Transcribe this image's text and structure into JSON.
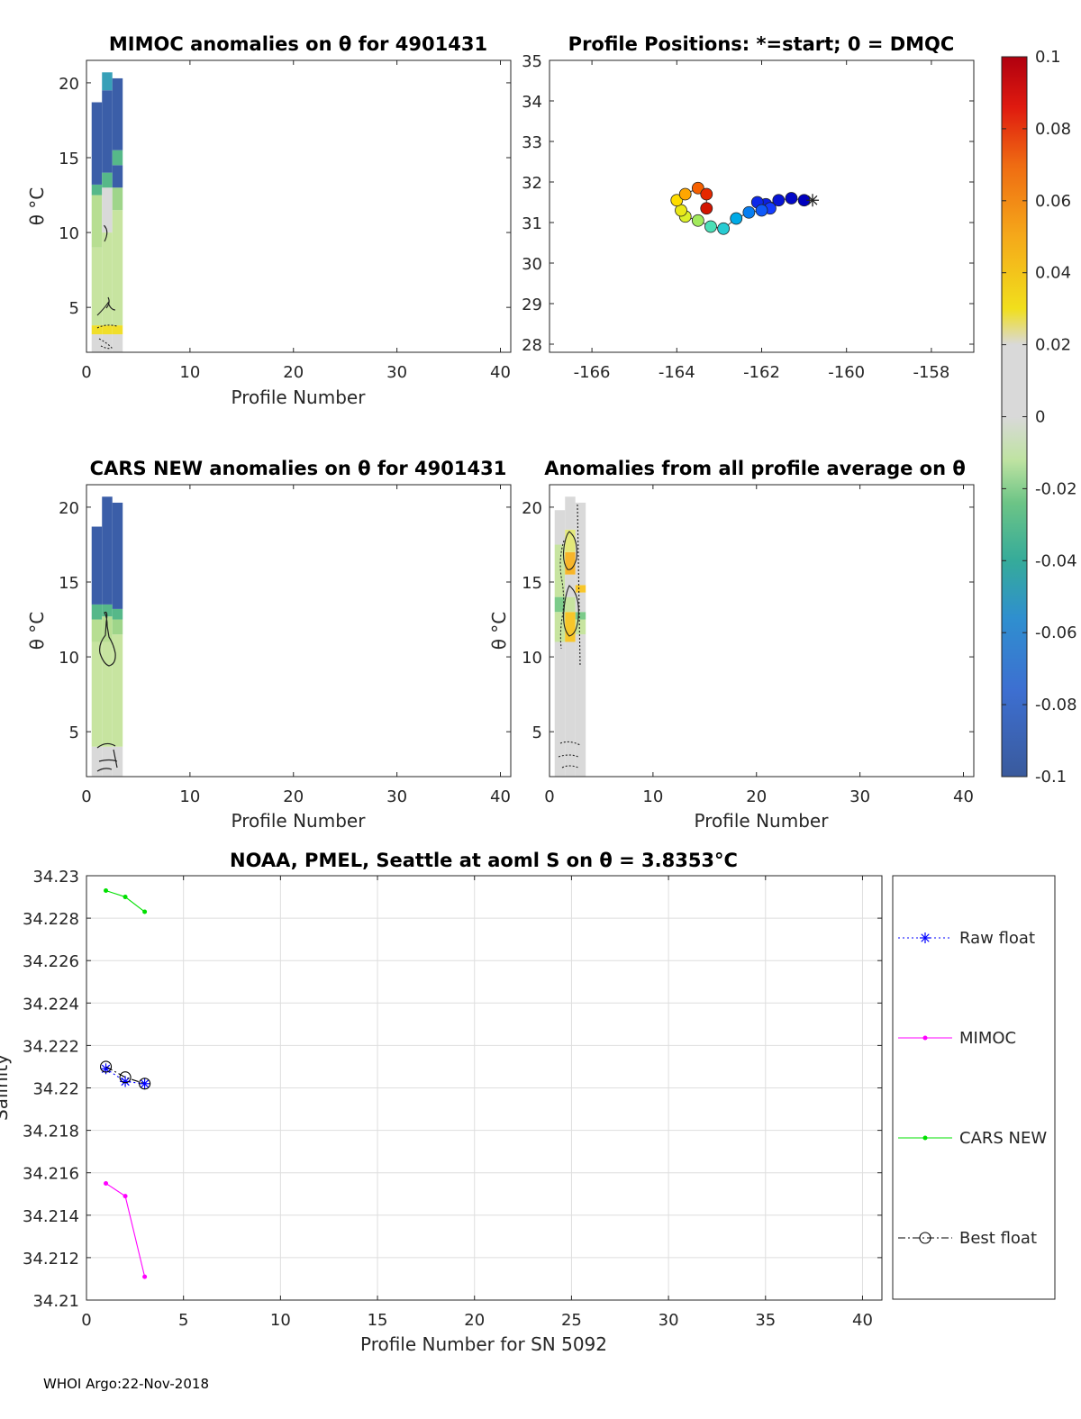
{
  "figure": {
    "footer": "WHOI Argo:22-Nov-2018"
  },
  "chart_data": [
    {
      "id": "mimoc",
      "type": "heatmap",
      "title": "MIMOC anomalies on θ  for 4901431",
      "xlabel": "Profile Number",
      "ylabel": "θ °C",
      "xlim": [
        0,
        41
      ],
      "ylim": [
        2,
        21.5
      ],
      "xticks": [
        0,
        10,
        20,
        30,
        40
      ],
      "yticks": [
        5,
        10,
        15,
        20
      ],
      "columns": [
        {
          "profile": 1,
          "theta_max": 18.7,
          "segments": [
            [
              2,
              3.2,
              "#d9d9d9"
            ],
            [
              3.2,
              3.8,
              "#f0de2a"
            ],
            [
              3.8,
              9,
              "#c7e4a0"
            ],
            [
              9,
              12.5,
              "#b7de92"
            ],
            [
              12.5,
              13.2,
              "#56b889"
            ],
            [
              13.2,
              18.7,
              "#3b5ea8"
            ]
          ]
        },
        {
          "profile": 2,
          "theta_max": 20.7,
          "segments": [
            [
              2,
              3.2,
              "#d9d9d9"
            ],
            [
              3.2,
              3.8,
              "#f0de2a"
            ],
            [
              3.8,
              10,
              "#c7e4a0"
            ],
            [
              10,
              13,
              "#d9d9d9"
            ],
            [
              13,
              14,
              "#56b889"
            ],
            [
              14,
              19.5,
              "#3b5ea8"
            ],
            [
              19.5,
              20.7,
              "#37a0b8"
            ]
          ]
        },
        {
          "profile": 3,
          "theta_max": 20.3,
          "segments": [
            [
              2,
              3.2,
              "#d9d9d9"
            ],
            [
              3.2,
              3.8,
              "#f0de2a"
            ],
            [
              3.8,
              11.5,
              "#c7e4a0"
            ],
            [
              11.5,
              13,
              "#9fd58a"
            ],
            [
              13,
              14.5,
              "#3b5ea8"
            ],
            [
              14.5,
              15.5,
              "#56b889"
            ],
            [
              15.5,
              20.3,
              "#3b5ea8"
            ]
          ]
        }
      ]
    },
    {
      "id": "positions",
      "type": "scatter",
      "title": "Profile Positions: *=start; 0 = DMQC",
      "xlim": [
        -167,
        -157
      ],
      "ylim": [
        27.8,
        35
      ],
      "xticks": [
        -166,
        -164,
        -162,
        -160,
        -158
      ],
      "yticks": [
        28,
        29,
        30,
        31,
        32,
        33,
        34,
        35
      ],
      "start": [
        -160.8,
        31.55
      ],
      "points": [
        {
          "lon": -161.0,
          "lat": 31.55,
          "c": 0.0
        },
        {
          "lon": -161.3,
          "lat": 31.6,
          "c": 0.02
        },
        {
          "lon": -161.6,
          "lat": 31.55,
          "c": 0.05
        },
        {
          "lon": -161.9,
          "lat": 31.45,
          "c": 0.08
        },
        {
          "lon": -162.1,
          "lat": 31.5,
          "c": 0.1
        },
        {
          "lon": -161.8,
          "lat": 31.35,
          "c": 0.15
        },
        {
          "lon": -162.0,
          "lat": 31.3,
          "c": 0.19
        },
        {
          "lon": -162.3,
          "lat": 31.25,
          "c": 0.24
        },
        {
          "lon": -162.6,
          "lat": 31.1,
          "c": 0.3
        },
        {
          "lon": -162.9,
          "lat": 30.85,
          "c": 0.38
        },
        {
          "lon": -163.2,
          "lat": 30.9,
          "c": 0.44
        },
        {
          "lon": -163.5,
          "lat": 31.05,
          "c": 0.55
        },
        {
          "lon": -163.8,
          "lat": 31.15,
          "c": 0.62
        },
        {
          "lon": -163.9,
          "lat": 31.3,
          "c": 0.66
        },
        {
          "lon": -164.0,
          "lat": 31.55,
          "c": 0.72
        },
        {
          "lon": -163.8,
          "lat": 31.7,
          "c": 0.78
        },
        {
          "lon": -163.5,
          "lat": 31.85,
          "c": 0.85
        },
        {
          "lon": -163.3,
          "lat": 31.7,
          "c": 0.9
        },
        {
          "lon": -163.3,
          "lat": 31.35,
          "c": 0.95
        }
      ],
      "colorbar": {
        "ticks": [
          0.1,
          0.08,
          0.06,
          0.04,
          0.02,
          0,
          -0.02,
          -0.04,
          -0.06,
          -0.08,
          -0.1
        ],
        "tick_labels": [
          "0.1",
          "0.08",
          "0.06",
          "0.04",
          "0.02",
          "0",
          "-0.02",
          "-0.04",
          "-0.06",
          "-0.08",
          "-0.1"
        ],
        "range": [
          -0.1,
          0.1
        ]
      }
    },
    {
      "id": "cars",
      "type": "heatmap",
      "title": "CARS NEW anomalies on θ for 4901431",
      "xlabel": "Profile Number",
      "ylabel": "θ °C",
      "xlim": [
        0,
        41
      ],
      "ylim": [
        2,
        21.5
      ],
      "xticks": [
        0,
        10,
        20,
        30,
        40
      ],
      "yticks": [
        5,
        10,
        15,
        20
      ],
      "columns": [
        {
          "profile": 1,
          "theta_max": 18.7,
          "segments": [
            [
              2,
              4,
              "#d9d9d9"
            ],
            [
              4,
              11,
              "#c7e4a0"
            ],
            [
              11,
              12.5,
              "#b7de92"
            ],
            [
              12.5,
              13.5,
              "#56b889"
            ],
            [
              13.5,
              18.7,
              "#3b5ea8"
            ]
          ]
        },
        {
          "profile": 2,
          "theta_max": 20.7,
          "segments": [
            [
              2,
              4,
              "#d9d9d9"
            ],
            [
              4,
              11,
              "#c7e4a0"
            ],
            [
              11,
              12.7,
              "#b7de92"
            ],
            [
              12.7,
              13.5,
              "#56b889"
            ],
            [
              13.5,
              20.7,
              "#3b5ea8"
            ]
          ]
        },
        {
          "profile": 3,
          "theta_max": 20.3,
          "segments": [
            [
              2,
              4,
              "#d9d9d9"
            ],
            [
              4,
              11.5,
              "#c7e4a0"
            ],
            [
              11.5,
              12.5,
              "#9fd58a"
            ],
            [
              12.5,
              13.2,
              "#56b889"
            ],
            [
              13.2,
              20.3,
              "#3b5ea8"
            ]
          ]
        }
      ]
    },
    {
      "id": "avg",
      "type": "heatmap",
      "title": "Anomalies from all profile average on θ",
      "xlabel": "Profile Number",
      "ylabel": "θ °C",
      "xlim": [
        0,
        41
      ],
      "ylim": [
        2,
        21.5
      ],
      "xticks": [
        0,
        10,
        20,
        30,
        40
      ],
      "yticks": [
        5,
        10,
        15,
        20
      ],
      "columns": [
        {
          "profile": 1,
          "theta_max": 19.8,
          "segments": [
            [
              2,
              11,
              "#d9d9d9"
            ],
            [
              11,
              13,
              "#c7e4a0"
            ],
            [
              13,
              14,
              "#7ccb8a"
            ],
            [
              14,
              17.5,
              "#c7e4a0"
            ],
            [
              17.5,
              19.8,
              "#d9d9d9"
            ]
          ]
        },
        {
          "profile": 2,
          "theta_max": 20.7,
          "segments": [
            [
              2,
              11,
              "#d9d9d9"
            ],
            [
              11,
              13,
              "#f7c62a"
            ],
            [
              13,
              14,
              "#c7e4a0"
            ],
            [
              14,
              15.5,
              "#d9d9d9"
            ],
            [
              15.5,
              17,
              "#f7b52a"
            ],
            [
              17,
              18.5,
              "#e3e87a"
            ],
            [
              18.5,
              20.7,
              "#d9d9d9"
            ]
          ]
        },
        {
          "profile": 3,
          "theta_max": 20.3,
          "segments": [
            [
              2,
              11.5,
              "#d9d9d9"
            ],
            [
              11.5,
              12.5,
              "#c7e4a0"
            ],
            [
              12.5,
              13,
              "#7ccb8a"
            ],
            [
              13,
              14.3,
              "#d9d9d9"
            ],
            [
              14.3,
              14.8,
              "#f7c62a"
            ],
            [
              14.8,
              20.3,
              "#d9d9d9"
            ]
          ]
        }
      ]
    },
    {
      "id": "salinity",
      "type": "line",
      "title": "NOAA, PMEL, Seattle at aoml S on θ = 3.8353°C",
      "xlabel": "Profile Number for SN 5092",
      "ylabel": "Salinity",
      "xlim": [
        0,
        41
      ],
      "ylim": [
        34.21,
        34.23
      ],
      "xticks": [
        0,
        5,
        10,
        15,
        20,
        25,
        30,
        35,
        40
      ],
      "yticks": [
        34.21,
        34.212,
        34.214,
        34.216,
        34.218,
        34.22,
        34.222,
        34.224,
        34.226,
        34.228,
        34.23
      ],
      "ytick_labels": [
        "34.21",
        "34.212",
        "34.214",
        "34.216",
        "34.218",
        "34.22",
        "34.222",
        "34.224",
        "34.226",
        "34.228",
        "34.23"
      ],
      "grid": true,
      "legend_position": "right",
      "series": [
        {
          "name": "Raw float",
          "x": [
            1,
            2,
            3
          ],
          "values": [
            34.2209,
            34.2203,
            34.2202
          ],
          "color": "#0000ff",
          "marker": "star",
          "dash": "2,3"
        },
        {
          "name": "MIMOC",
          "x": [
            1,
            2,
            3
          ],
          "values": [
            34.2155,
            34.2149,
            34.2111
          ],
          "color": "#ff00ff",
          "marker": "dot",
          "dash": ""
        },
        {
          "name": "CARS NEW",
          "x": [
            1,
            2,
            3
          ],
          "values": [
            34.2293,
            34.229,
            34.2283
          ],
          "color": "#00e000",
          "marker": "dot",
          "dash": ""
        },
        {
          "name": "Best float",
          "x": [
            1,
            2,
            3
          ],
          "values": [
            34.221,
            34.2205,
            34.2202
          ],
          "color": "#000000",
          "marker": "circle",
          "dash": "8,3,2,3"
        }
      ]
    }
  ]
}
